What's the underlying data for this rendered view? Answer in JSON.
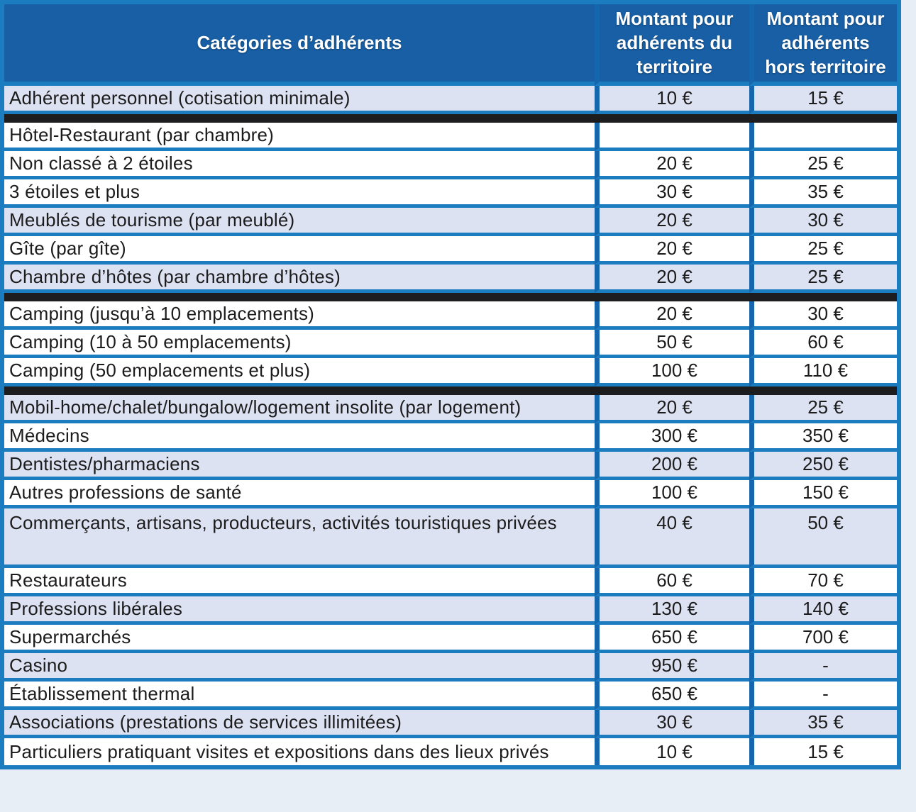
{
  "document_type": "scanned-membership-fee-table",
  "colors": {
    "header_bg": "#185fa5",
    "grid_blue": "#1b7dc0",
    "vert_blue": "#1566ad",
    "row_alt_bg": "#dde2f3",
    "row_bg": "#ffffff",
    "separator_black": "#1d1d20",
    "text": "#1c1c1c",
    "header_text": "#ffffff",
    "page_bg": "#e8eef5"
  },
  "table": {
    "columns": [
      {
        "label": "Catégories d’adhérents"
      },
      {
        "label": "Montant pour adhérents du territoire"
      },
      {
        "label": "Montant pour adhérents hors territoire"
      }
    ],
    "rows": [
      {
        "category": "Adhérent personnel (cotisation minimale)",
        "territory": "10 €",
        "hors": "15 €",
        "shaded": true,
        "tall": false,
        "separator_after": true
      },
      {
        "category": "Hôtel-Restaurant (par chambre)",
        "territory": "",
        "hors": "",
        "shaded": false,
        "tall": false,
        "separator_after": false
      },
      {
        "category": "Non classé à 2 étoiles",
        "territory": "20 €",
        "hors": "25 €",
        "shaded": false,
        "tall": false,
        "separator_after": false
      },
      {
        "category": "3 étoiles et plus",
        "territory": "30 €",
        "hors": "35 €",
        "shaded": false,
        "tall": false,
        "separator_after": false
      },
      {
        "category": "Meublés de tourisme (par meublé)",
        "territory": "20 €",
        "hors": "30 €",
        "shaded": true,
        "tall": false,
        "separator_after": false
      },
      {
        "category": "Gîte (par gîte)",
        "territory": "20 €",
        "hors": "25 €",
        "shaded": false,
        "tall": false,
        "separator_after": false
      },
      {
        "category": "Chambre d’hôtes (par chambre d’hôtes)",
        "territory": "20 €",
        "hors": "25 €",
        "shaded": true,
        "tall": false,
        "separator_after": true
      },
      {
        "category": "Camping (jusqu’à 10 emplacements)",
        "territory": "20 €",
        "hors": "30 €",
        "shaded": false,
        "tall": false,
        "separator_after": false
      },
      {
        "category": "Camping (10 à 50 emplacements)",
        "territory": "50 €",
        "hors": "60 €",
        "shaded": false,
        "tall": false,
        "separator_after": false
      },
      {
        "category": "Camping (50 emplacements et plus)",
        "territory": "100 €",
        "hors": "110 €",
        "shaded": false,
        "tall": false,
        "separator_after": true
      },
      {
        "category": "Mobil-home/chalet/bungalow/logement insolite (par logement)",
        "territory": "20 €",
        "hors": "25 €",
        "shaded": true,
        "tall": false,
        "separator_after": false
      },
      {
        "category": "Médecins",
        "territory": "300 €",
        "hors": "350 €",
        "shaded": false,
        "tall": false,
        "separator_after": false
      },
      {
        "category": "Dentistes/pharmaciens",
        "territory": "200 €",
        "hors": "250 €",
        "shaded": true,
        "tall": false,
        "separator_after": false
      },
      {
        "category": "Autres professions de santé",
        "territory": "100 €",
        "hors": "150 €",
        "shaded": false,
        "tall": false,
        "separator_after": false
      },
      {
        "category": "Commerçants, artisans, producteurs, activités touristiques privées",
        "territory": "40 €",
        "hors": "50 €",
        "shaded": true,
        "tall": true,
        "separator_after": false
      },
      {
        "category": "Restaurateurs",
        "territory": "60 €",
        "hors": "70 €",
        "shaded": false,
        "tall": false,
        "separator_after": false
      },
      {
        "category": "Professions libérales",
        "territory": "130 €",
        "hors": "140 €",
        "shaded": true,
        "tall": false,
        "separator_after": false
      },
      {
        "category": "Supermarchés",
        "territory": "650 €",
        "hors": "700 €",
        "shaded": false,
        "tall": false,
        "separator_after": false
      },
      {
        "category": "Casino",
        "territory": "950 €",
        "hors": "-",
        "shaded": true,
        "tall": false,
        "separator_after": false
      },
      {
        "category": "Établissement thermal",
        "territory": "650 €",
        "hors": "-",
        "shaded": false,
        "tall": false,
        "separator_after": false
      },
      {
        "category": "Associations (prestations de services illimitées)",
        "territory": "30 €",
        "hors": "35 €",
        "shaded": true,
        "tall": false,
        "separator_after": false
      },
      {
        "category": "Particuliers pratiquant visites et expositions dans des lieux privés",
        "territory": "10 €",
        "hors": "15 €",
        "shaded": false,
        "tall": false,
        "separator_after": false
      }
    ]
  }
}
